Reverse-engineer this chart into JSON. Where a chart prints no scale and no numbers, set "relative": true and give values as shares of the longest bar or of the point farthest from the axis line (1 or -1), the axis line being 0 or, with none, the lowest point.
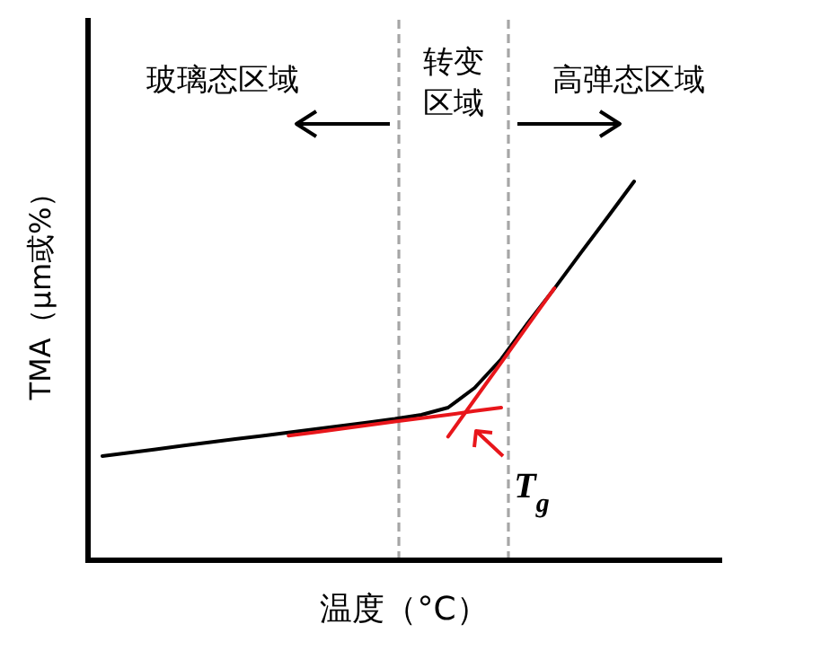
{
  "chart_data": {
    "type": "line",
    "relative": true,
    "xlabel": "温度（°C）",
    "ylabel": "TMA（μm或%）",
    "categories": [
      null,
      null,
      null,
      null,
      null,
      null,
      null,
      null,
      null,
      null,
      null,
      null,
      null,
      null,
      null,
      null,
      null,
      null,
      null,
      null,
      null
    ],
    "series": [
      {
        "color": "#000000",
        "values": [
          0.275,
          0.284,
          0.293,
          0.302,
          0.311,
          0.32,
          0.328,
          0.337,
          0.346,
          0.355,
          0.364,
          0.373,
          0.384,
          0.403,
          0.455,
          0.531,
          0.626,
          0.717,
          0.812,
          0.905,
          1
        ]
      },
      {
        "color": "#e8161b",
        "values": [
          null,
          null,
          null,
          null,
          null,
          null,
          null,
          0.329,
          0.338,
          0.347,
          0.357,
          0.366,
          0.375,
          0.384,
          0.394,
          0.403,
          null,
          null,
          null,
          null,
          null
        ]
      },
      {
        "color": "#e8161b",
        "values": [
          null,
          null,
          null,
          null,
          null,
          null,
          null,
          null,
          null,
          null,
          null,
          null,
          null,
          0.326,
          0.424,
          0.522,
          0.62,
          0.718,
          null,
          null,
          null
        ]
      }
    ],
    "annotations": [
      "玻璃态区域",
      "转变区域",
      "高弹态区域",
      "T$_{g}$"
    ],
    "line_style": "solid"
  }
}
